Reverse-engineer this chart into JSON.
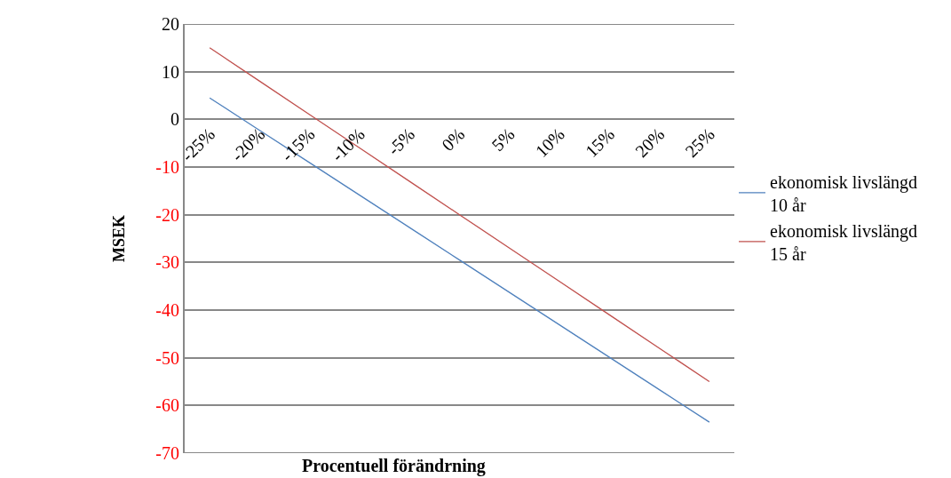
{
  "chart_data": {
    "type": "line",
    "xlabel": "Procentuell förändrning",
    "ylabel": "MSEK",
    "categories": [
      "-25%",
      "-20%",
      "-15%",
      "-10%",
      "-5%",
      "0%",
      "5%",
      "10%",
      "15%",
      "20%",
      "25%"
    ],
    "series": [
      {
        "name": "ekonomisk livslängd 10 år",
        "color": "#4f81bd",
        "values": [
          4.5,
          -2.3,
          -9.1,
          -15.9,
          -22.7,
          -29.5,
          -36.3,
          -43.1,
          -49.9,
          -56.7,
          -63.5
        ]
      },
      {
        "name": "ekonomisk livslängd 15 år",
        "color": "#c0504d",
        "values": [
          15,
          8,
          1,
          -6,
          -13,
          -20,
          -27,
          -34,
          -41,
          -48,
          -55
        ]
      }
    ],
    "ylim": [
      -70,
      20
    ],
    "yticks": [
      -70,
      -60,
      -50,
      -40,
      -30,
      -20,
      -10,
      0,
      10,
      20
    ],
    "grid": "y",
    "legend": "right",
    "marker": "none",
    "line_style": "solid"
  }
}
